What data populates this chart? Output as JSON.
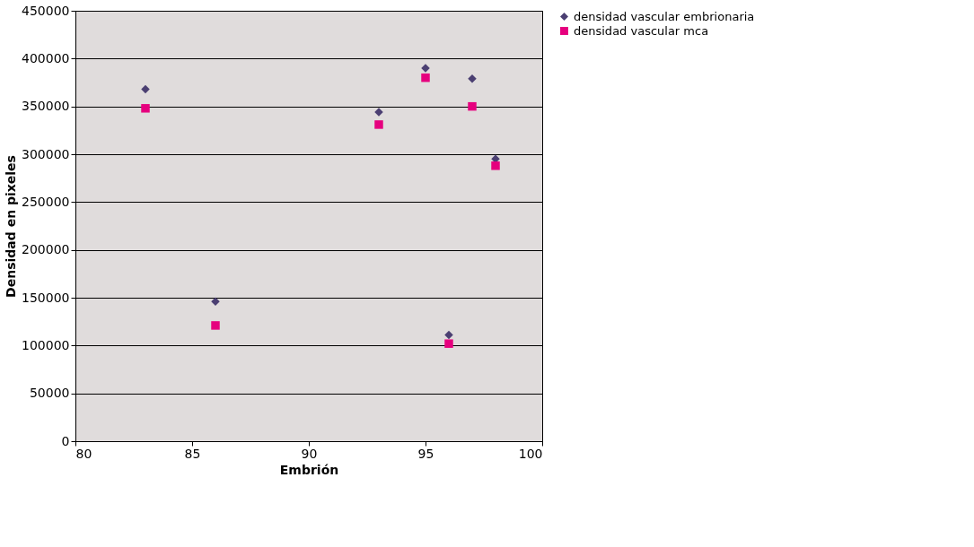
{
  "chart_data": {
    "type": "scatter",
    "xlabel": "Embrión",
    "ylabel": "Densidad en pixeles",
    "xlim": [
      80,
      100
    ],
    "xticks": [
      80,
      85,
      90,
      95,
      100
    ],
    "ylim": [
      0,
      450000
    ],
    "yticks": [
      0,
      50000,
      100000,
      150000,
      200000,
      250000,
      300000,
      350000,
      400000,
      450000
    ],
    "grid": "y",
    "legend": "right",
    "series": [
      {
        "name": "densidad vascular embrionaria",
        "color": "#4b3f72",
        "marker": "diamond",
        "x": [
          83,
          86,
          93,
          95,
          96,
          97,
          98
        ],
        "values": [
          368000,
          146000,
          344000,
          390000,
          111000,
          379000,
          295000
        ]
      },
      {
        "name": "densidad vascular mca",
        "color": "#e6007e",
        "marker": "square",
        "x": [
          83,
          86,
          93,
          95,
          96,
          97,
          98
        ],
        "values": [
          348000,
          121000,
          331000,
          380000,
          102000,
          350000,
          288000
        ]
      }
    ]
  }
}
